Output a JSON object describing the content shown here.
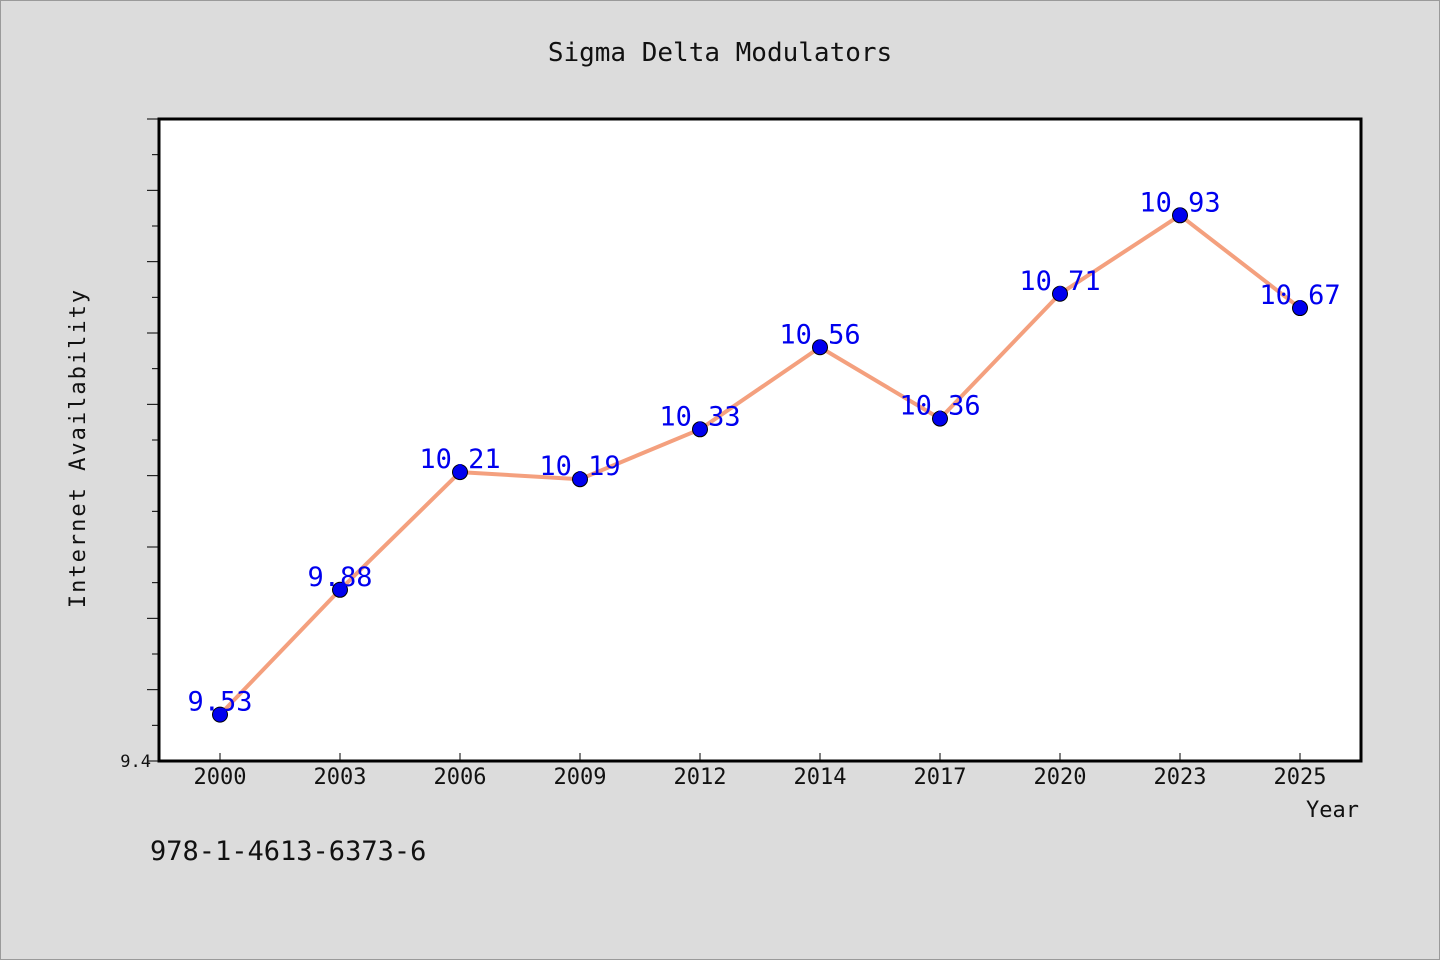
{
  "chart_data": {
    "type": "line",
    "title": "Sigma Delta Modulators",
    "xlabel": "Year",
    "ylabel": "Internet Availability",
    "categories": [
      "2000",
      "2003",
      "2006",
      "2009",
      "2012",
      "2014",
      "2017",
      "2020",
      "2023",
      "2025"
    ],
    "series": [
      {
        "values": [
          9.53,
          9.88,
          10.21,
          10.19,
          10.33,
          10.56,
          10.36,
          10.71,
          10.93,
          10.67
        ],
        "line_color": "#f4a07e",
        "marker_color": "#0000ee",
        "label_color": "#0000ee"
      }
    ],
    "ylim": [
      9.4,
      11.2
    ],
    "ytick_labels": [
      "9.4"
    ],
    "grid": false,
    "legend": "none"
  },
  "footer": {
    "isbn": "978-1-4613-6373-6"
  }
}
